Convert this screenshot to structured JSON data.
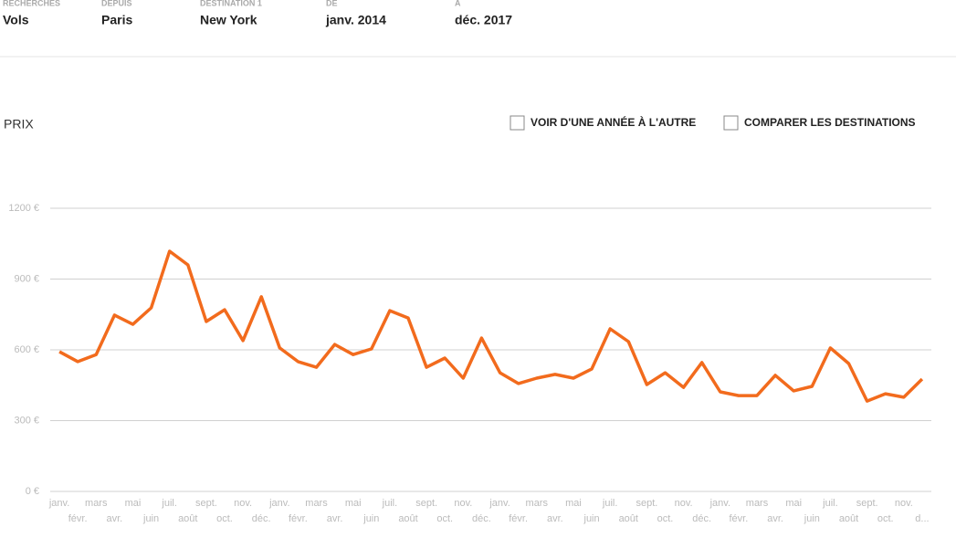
{
  "header": {
    "fields": [
      {
        "label": "RECHERCHES",
        "value": "Vols"
      },
      {
        "label": "DEPUIS",
        "value": "Paris"
      },
      {
        "label": "DESTINATION 1",
        "value": "New York"
      },
      {
        "label": "DE",
        "value": "janv. 2014"
      },
      {
        "label": "À",
        "value": "déc. 2017"
      }
    ]
  },
  "chart_data": {
    "type": "line",
    "y_label": "PRIX",
    "options": [
      "VOIR D'UNE ANNÉE À L'AUTRE",
      "COMPARER LES DESTINATIONS"
    ],
    "categories": [
      "janv.",
      "févr.",
      "mars",
      "avr.",
      "mai",
      "juin",
      "juil.",
      "août",
      "sept.",
      "oct.",
      "nov.",
      "déc.",
      "janv.",
      "févr.",
      "mars",
      "avr.",
      "mai",
      "juin",
      "juil.",
      "août",
      "sept.",
      "oct.",
      "nov.",
      "déc.",
      "janv.",
      "févr.",
      "mars",
      "avr.",
      "mai",
      "juin",
      "juil.",
      "août",
      "sept.",
      "oct.",
      "nov.",
      "déc.",
      "janv.",
      "févr.",
      "mars",
      "avr.",
      "mai",
      "juin",
      "juil.",
      "août",
      "sept.",
      "oct.",
      "nov.",
      "d..."
    ],
    "values": [
      592,
      550,
      580,
      747,
      708,
      778,
      1018,
      960,
      720,
      770,
      639,
      825,
      608,
      550,
      526,
      623,
      580,
      604,
      766,
      735,
      526,
      565,
      480,
      650,
      503,
      457,
      480,
      496,
      480,
      519,
      689,
      635,
      453,
      503,
      441,
      546,
      422,
      406,
      406,
      492,
      426,
      445,
      608,
      542,
      383,
      414,
      399,
      476
    ],
    "color": "#f26b1d",
    "ylim": [
      0,
      1200
    ],
    "yticks": [
      {
        "value": 0,
        "label": "0 €"
      },
      {
        "value": 300,
        "label": "300 €"
      },
      {
        "value": 600,
        "label": "600 €"
      },
      {
        "value": 900,
        "label": "900 €"
      },
      {
        "value": 1200,
        "label": "1200 €"
      }
    ],
    "grid": true
  }
}
